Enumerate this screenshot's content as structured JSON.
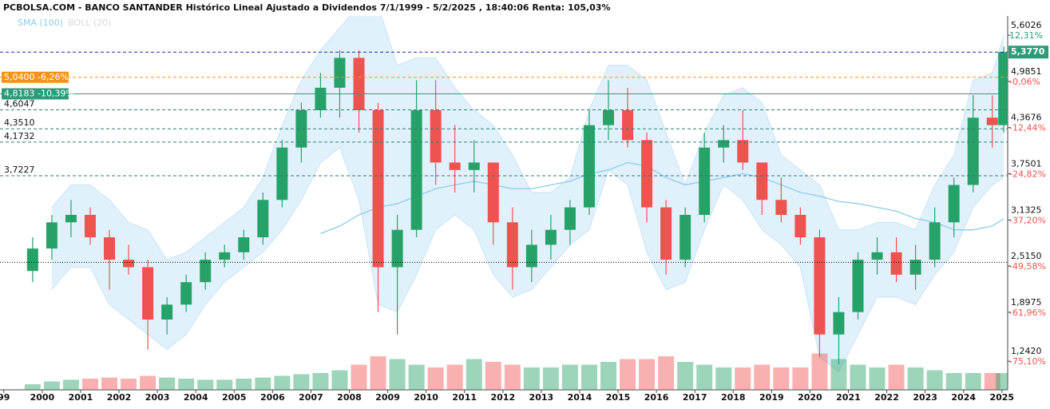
{
  "chart_data": {
    "type": "candlestick",
    "title": "PCBOLSA.COM - BANCO SANTANDER Histórico Lineal Ajustado a Dividendos 7/1/1999 - 5/2/2025 , 18:40:06 Renta: 105,03%",
    "legend": [
      {
        "name": "SMA (100)",
        "color": "#8ecbee"
      },
      {
        "name": "BOLL (20)",
        "color": "#d8d8d8"
      }
    ],
    "up_color": "#26a269",
    "down_color": "#ef5350",
    "xlim": [
      1998.9,
      2025.15
    ],
    "xticks": [
      {
        "value": 1999,
        "label": "99"
      },
      2000,
      2001,
      2002,
      2003,
      2004,
      2005,
      2006,
      2007,
      2008,
      2009,
      2010,
      2011,
      2012,
      2013,
      2014,
      2015,
      2016,
      2017,
      2018,
      2019,
      2020,
      2021,
      2022,
      2023,
      2024,
      2025
    ],
    "ylim": [
      0.86,
      5.86
    ],
    "yticks": [
      {
        "value": 5.6026,
        "label": "5,6026"
      },
      {
        "value": 4.9851,
        "label": "4,9851"
      },
      {
        "value": 4.3676,
        "label": "4,3676"
      },
      {
        "value": 3.7501,
        "label": "3,7501"
      },
      {
        "value": 3.1325,
        "label": "3,1325"
      },
      {
        "value": 2.515,
        "label": "2,5150"
      },
      {
        "value": 1.8975,
        "label": "1,8975"
      },
      {
        "value": 1.242,
        "label": "1,2420"
      }
    ],
    "y2lim": [
      -82.76,
      17.47
    ],
    "y2ticks": [
      {
        "value": 12.31,
        "label": "12,31%"
      },
      {
        "value": -0.06,
        "label": "-0,06%"
      },
      {
        "value": -12.44,
        "label": "-12,44%"
      },
      {
        "value": -24.82,
        "label": "-24,82%"
      },
      {
        "value": -37.2,
        "label": "-37,20%"
      },
      {
        "value": -49.58,
        "label": "-49,58%"
      },
      {
        "value": -61.96,
        "label": "-61,96%"
      },
      {
        "value": -75.1,
        "label": "-75,10%"
      }
    ],
    "last": {
      "value": 5.377,
      "label": "5,3770",
      "color": "#1e2aa8"
    },
    "levels": [
      {
        "value": 5.04,
        "label": "5,0400  -6,26%",
        "color": "#f7931a"
      },
      {
        "value": 4.8183,
        "label": "4,8183  -10,39%",
        "color": "#2a9d78"
      },
      {
        "value": 4.6047,
        "label": "4,6047",
        "color": "#2f7d6e"
      },
      {
        "value": 4.351,
        "label": "4,3510",
        "color": "#2f7d6e"
      },
      {
        "value": 4.1732,
        "label": "4,1732",
        "color": "#2f7d6e"
      },
      {
        "value": 3.7227,
        "label": "3,7227",
        "color": "#2f7d6e"
      },
      {
        "value": 2.565,
        "color": "#000000"
      }
    ],
    "vlim": [
      0,
      100
    ],
    "x": [
      1999.75,
      2000.25,
      2000.75,
      2001.25,
      2001.75,
      2002.25,
      2002.75,
      2003.25,
      2003.75,
      2004.25,
      2004.75,
      2005.25,
      2005.75,
      2006.25,
      2006.75,
      2007.25,
      2007.75,
      2008.25,
      2008.75,
      2009.25,
      2009.75,
      2010.25,
      2010.75,
      2011.25,
      2011.75,
      2012.25,
      2012.75,
      2013.25,
      2013.75,
      2014.25,
      2014.75,
      2015.25,
      2015.75,
      2016.25,
      2016.75,
      2017.25,
      2017.75,
      2018.25,
      2018.75,
      2019.25,
      2019.75,
      2020.25,
      2020.75,
      2021.25,
      2021.75,
      2022.25,
      2022.75,
      2023.25,
      2023.75,
      2024.25,
      2024.75,
      2025.05
    ],
    "open": [
      2.45,
      2.75,
      3.1,
      3.2,
      2.9,
      2.6,
      2.5,
      1.8,
      2.0,
      2.3,
      2.6,
      2.7,
      2.9,
      3.4,
      4.1,
      4.6,
      4.9,
      5.3,
      4.6,
      2.5,
      3.0,
      4.6,
      3.9,
      3.8,
      3.9,
      3.1,
      2.5,
      2.8,
      3.0,
      3.3,
      4.4,
      4.6,
      4.2,
      3.3,
      2.6,
      3.2,
      4.1,
      4.2,
      3.9,
      3.4,
      3.2,
      2.9,
      1.6,
      1.9,
      2.6,
      2.7,
      2.4,
      2.6,
      3.1,
      3.6,
      4.5,
      4.4
    ],
    "high": [
      2.9,
      3.2,
      3.4,
      3.3,
      3.0,
      2.8,
      2.6,
      2.1,
      2.4,
      2.7,
      2.8,
      3.0,
      3.5,
      4.2,
      4.7,
      5.1,
      5.4,
      5.4,
      4.7,
      3.2,
      5.0,
      5.0,
      4.4,
      4.2,
      3.9,
      3.3,
      3.0,
      3.2,
      3.4,
      4.6,
      5.0,
      4.9,
      4.3,
      3.4,
      3.3,
      4.3,
      4.4,
      4.6,
      3.9,
      3.7,
      3.3,
      3.0,
      2.1,
      2.7,
      2.9,
      2.9,
      2.8,
      3.3,
      3.7,
      4.8,
      4.8,
      5.45
    ],
    "low": [
      2.3,
      2.6,
      2.9,
      2.8,
      2.2,
      2.4,
      1.4,
      1.6,
      1.9,
      2.2,
      2.5,
      2.6,
      2.8,
      3.3,
      3.9,
      4.5,
      4.5,
      4.3,
      1.9,
      1.6,
      2.9,
      3.6,
      3.5,
      3.5,
      2.8,
      2.2,
      2.3,
      2.6,
      2.8,
      3.2,
      4.2,
      4.1,
      3.1,
      2.4,
      2.5,
      3.1,
      3.9,
      3.8,
      3.2,
      3.1,
      2.8,
      1.3,
      1.2,
      1.8,
      2.4,
      2.3,
      2.2,
      2.5,
      2.9,
      3.5,
      4.1,
      4.3
    ],
    "close": [
      2.75,
      3.1,
      3.2,
      2.9,
      2.6,
      2.5,
      1.8,
      2.0,
      2.3,
      2.6,
      2.7,
      2.9,
      3.4,
      4.1,
      4.6,
      4.9,
      5.3,
      4.6,
      2.5,
      3.0,
      4.6,
      3.9,
      3.8,
      3.9,
      3.1,
      2.5,
      2.8,
      3.0,
      3.3,
      4.4,
      4.6,
      4.2,
      3.3,
      2.6,
      3.2,
      4.1,
      4.2,
      3.9,
      3.4,
      3.2,
      2.9,
      1.6,
      1.9,
      2.6,
      2.7,
      2.4,
      2.6,
      3.1,
      3.6,
      4.5,
      4.4,
      5.377
    ],
    "volume": [
      10,
      15,
      18,
      20,
      22,
      20,
      25,
      22,
      20,
      18,
      18,
      20,
      22,
      25,
      28,
      30,
      35,
      45,
      60,
      55,
      45,
      40,
      45,
      55,
      50,
      45,
      40,
      40,
      45,
      45,
      50,
      55,
      55,
      60,
      50,
      45,
      40,
      40,
      45,
      40,
      40,
      65,
      55,
      45,
      40,
      45,
      40,
      35,
      30,
      30,
      30,
      30
    ],
    "sma": [
      null,
      null,
      null,
      null,
      null,
      null,
      null,
      null,
      null,
      null,
      null,
      null,
      null,
      null,
      null,
      2.95,
      3.05,
      3.2,
      3.3,
      3.35,
      3.45,
      3.55,
      3.6,
      3.65,
      3.6,
      3.55,
      3.55,
      3.6,
      3.65,
      3.75,
      3.8,
      3.9,
      3.85,
      3.7,
      3.6,
      3.65,
      3.7,
      3.75,
      3.7,
      3.6,
      3.5,
      3.45,
      3.38,
      3.35,
      3.3,
      3.25,
      3.15,
      3.1,
      3.0,
      3.0,
      3.05,
      3.15
    ],
    "boll_upper": [
      null,
      3.3,
      3.6,
      3.6,
      3.4,
      3.1,
      3.0,
      2.6,
      2.7,
      2.9,
      3.1,
      3.3,
      3.7,
      4.4,
      5.0,
      5.4,
      5.7,
      6.0,
      6.0,
      5.2,
      5.3,
      5.3,
      4.9,
      4.6,
      4.4,
      4.0,
      3.5,
      3.5,
      3.7,
      4.6,
      5.2,
      5.2,
      5.0,
      4.3,
      3.6,
      4.3,
      4.8,
      4.9,
      4.7,
      4.0,
      3.8,
      3.6,
      3.0,
      3.0,
      3.1,
      3.1,
      3.0,
      3.6,
      4.0,
      5.0,
      5.1,
      5.6
    ],
    "boll_lower": [
      null,
      2.2,
      2.5,
      2.5,
      2.0,
      1.8,
      1.6,
      1.4,
      1.6,
      2.0,
      2.3,
      2.5,
      2.7,
      3.0,
      3.4,
      3.9,
      4.1,
      3.4,
      2.0,
      1.9,
      2.4,
      3.0,
      3.2,
      3.0,
      2.4,
      2.1,
      2.2,
      2.5,
      2.8,
      3.0,
      3.8,
      3.6,
      2.7,
      2.2,
      2.3,
      3.0,
      3.6,
      3.4,
      3.0,
      2.8,
      2.5,
      1.3,
      1.1,
      1.6,
      2.1,
      2.1,
      2.0,
      2.4,
      2.7,
      3.3,
      3.6,
      3.7
    ]
  }
}
